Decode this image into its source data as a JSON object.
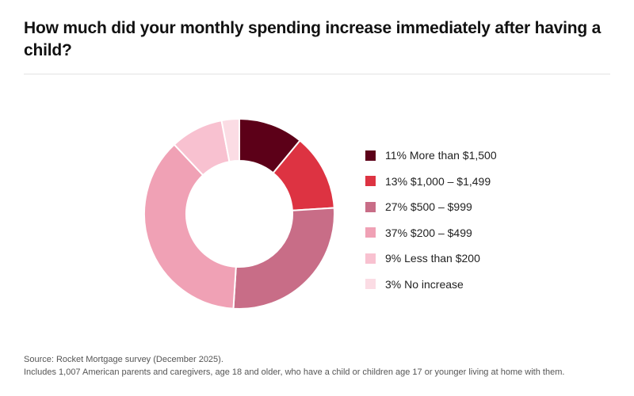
{
  "title": "How much did your monthly spending increase immediately after having a child?",
  "chart_data": {
    "type": "pie",
    "donut": true,
    "title": "How much did your monthly spending increase immediately after having a child?",
    "legend_position": "right",
    "categories": [
      "More than $1,500",
      "$1,000 – $1,499",
      "$500 – $999",
      "$200 – $499",
      "Less than $200",
      "No increase"
    ],
    "values": [
      11,
      13,
      27,
      37,
      9,
      3
    ],
    "labels": [
      "11% More than $1,500",
      "13% $1,000 – $1,499",
      "27% $500 – $999",
      "37% $200 – $499",
      "9% Less than $200",
      "3% No increase"
    ],
    "colors": [
      "#5c0018",
      "#dd3342",
      "#c86d87",
      "#f0a1b5",
      "#f8c1d0",
      "#fbdce4"
    ]
  },
  "source": {
    "line1": "Source: Rocket Mortgage survey (December 2025).",
    "line2": "Includes 1,007 American parents and caregivers, age 18 and older, who have a child or children age 17 or younger living at home with them."
  }
}
